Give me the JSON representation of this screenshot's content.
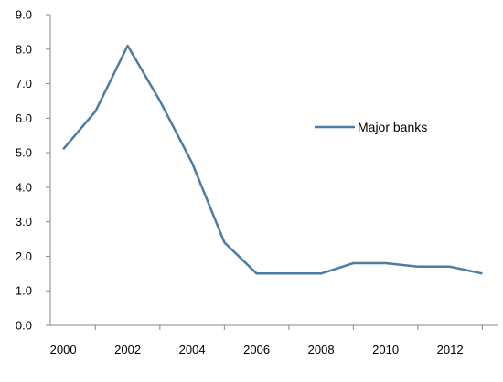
{
  "chart_data": {
    "type": "line",
    "x": [
      2000,
      2001,
      2002,
      2003,
      2004,
      2005,
      2006,
      2007,
      2008,
      2009,
      2010,
      2011,
      2012,
      2013
    ],
    "series": [
      {
        "name": "Major banks",
        "values": [
          5.1,
          6.2,
          8.1,
          6.5,
          4.7,
          2.4,
          1.5,
          1.5,
          1.5,
          1.8,
          1.8,
          1.7,
          1.7,
          1.5
        ]
      }
    ],
    "xlim": [
      1999.6,
      2013.5
    ],
    "ylim": [
      0,
      9
    ],
    "yticks": [
      "0.0",
      "1.0",
      "2.0",
      "3.0",
      "4.0",
      "5.0",
      "6.0",
      "7.0",
      "8.0",
      "9.0"
    ],
    "xticks": [
      "2000",
      "2002",
      "2004",
      "2006",
      "2008",
      "2010",
      "2012"
    ],
    "grid": false,
    "legend_position": "right",
    "colors": {
      "series": "#4A7CA8",
      "axis": "#888888",
      "title": "#2E6DB4"
    }
  }
}
